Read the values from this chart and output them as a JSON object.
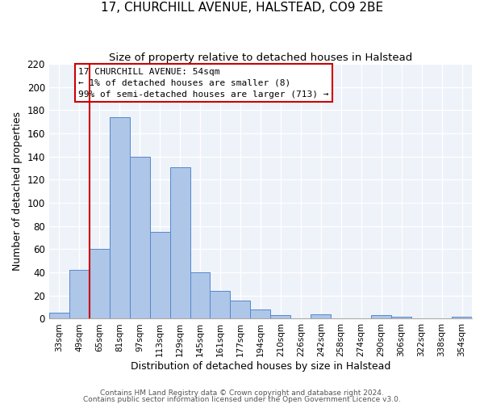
{
  "title": "17, CHURCHILL AVENUE, HALSTEAD, CO9 2BE",
  "subtitle": "Size of property relative to detached houses in Halstead",
  "xlabel": "Distribution of detached houses by size in Halstead",
  "ylabel": "Number of detached properties",
  "bar_labels": [
    "33sqm",
    "49sqm",
    "65sqm",
    "81sqm",
    "97sqm",
    "113sqm",
    "129sqm",
    "145sqm",
    "161sqm",
    "177sqm",
    "194sqm",
    "210sqm",
    "226sqm",
    "242sqm",
    "258sqm",
    "274sqm",
    "290sqm",
    "306sqm",
    "322sqm",
    "338sqm",
    "354sqm"
  ],
  "bar_heights": [
    5,
    42,
    60,
    174,
    140,
    75,
    131,
    40,
    24,
    16,
    8,
    3,
    0,
    4,
    0,
    0,
    3,
    2,
    0,
    0,
    2
  ],
  "bar_color": "#aec6e8",
  "bar_edge_color": "#5588cc",
  "vline_color": "#cc0000",
  "annotation_title": "17 CHURCHILL AVENUE: 54sqm",
  "annotation_line1": "← 1% of detached houses are smaller (8)",
  "annotation_line2": "99% of semi-detached houses are larger (713) →",
  "annotation_box_color": "#cc0000",
  "ylim": [
    0,
    220
  ],
  "yticks": [
    0,
    20,
    40,
    60,
    80,
    100,
    120,
    140,
    160,
    180,
    200,
    220
  ],
  "footer1": "Contains HM Land Registry data © Crown copyright and database right 2024.",
  "footer2": "Contains public sector information licensed under the Open Government Licence v3.0.",
  "bg_color": "#eef2f9",
  "fig_bg_color": "#ffffff"
}
